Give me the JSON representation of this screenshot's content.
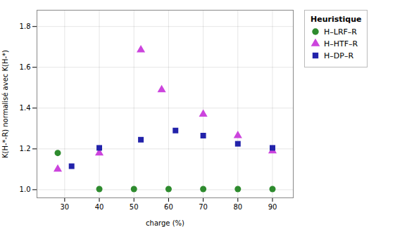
{
  "chart_data": {
    "type": "scatter",
    "xlabel": "charge (%)",
    "ylabel": "K(H-*-R) normalisé avec K(H-*)",
    "legend_title": "Heuristique",
    "legend": "right",
    "grid": true,
    "xlim": [
      22,
      96
    ],
    "ylim": [
      0.96,
      1.88
    ],
    "xticks": [
      30,
      40,
      50,
      60,
      70,
      80,
      90
    ],
    "yticks": [
      {
        "value": 1.0,
        "label": "1.0"
      },
      1.2,
      1.4,
      1.6,
      1.8
    ],
    "series": [
      {
        "name": "H–LRF–R",
        "color": "#2e8b2e",
        "marker": "circle",
        "x": [
          28,
          40,
          50,
          60,
          70,
          80,
          90
        ],
        "values": [
          1.18,
          1.003,
          1.003,
          1.003,
          1.003,
          1.003,
          1.003
        ]
      },
      {
        "name": "H–HTF–R",
        "color": "#cc44dd",
        "marker": "triangle",
        "x": [
          28,
          40,
          52,
          58,
          70,
          80,
          90
        ],
        "values": [
          1.1,
          1.18,
          1.685,
          1.49,
          1.37,
          1.265,
          1.19
        ]
      },
      {
        "name": "H–DP–R",
        "color": "#2222aa",
        "marker": "square",
        "x": [
          32,
          40,
          52,
          62,
          70,
          80,
          90
        ],
        "values": [
          1.115,
          1.205,
          1.245,
          1.29,
          1.265,
          1.225,
          1.205
        ]
      }
    ]
  }
}
